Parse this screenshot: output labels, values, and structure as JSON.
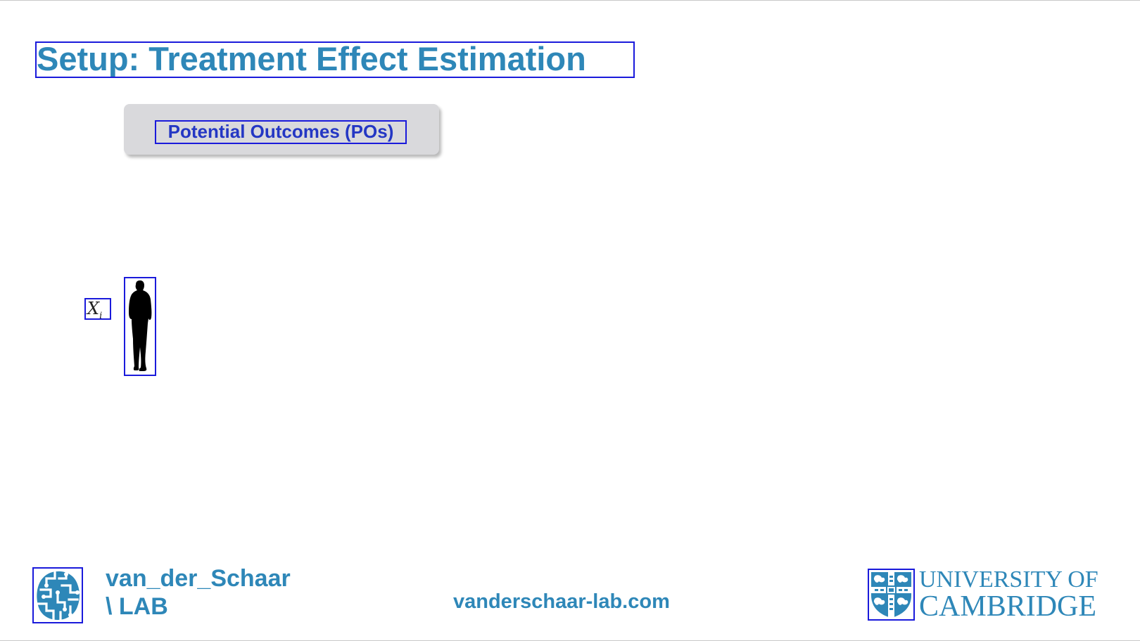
{
  "slide": {
    "title": "Setup: Treatment Effect Estimation",
    "potential_outcomes_label": "Potential Outcomes (POs)",
    "covariate_symbol": "X",
    "covariate_subscript": "i"
  },
  "footer": {
    "lab_name_line1": "van_der_Schaar",
    "lab_name_line2": "\\ LAB",
    "website": "vanderschaar-lab.com",
    "university_line1": "UNIVERSITY OF",
    "university_line2": "CAMBRIDGE"
  },
  "colors": {
    "title": "#2e87b8",
    "label_text": "#2437c4",
    "box_fill": "#d9d9dc",
    "outline": "#1a1adb"
  },
  "icons": {
    "person": "person-silhouette-icon",
    "lab_logo": "brain-logo-icon",
    "crest": "cambridge-crest-icon"
  }
}
